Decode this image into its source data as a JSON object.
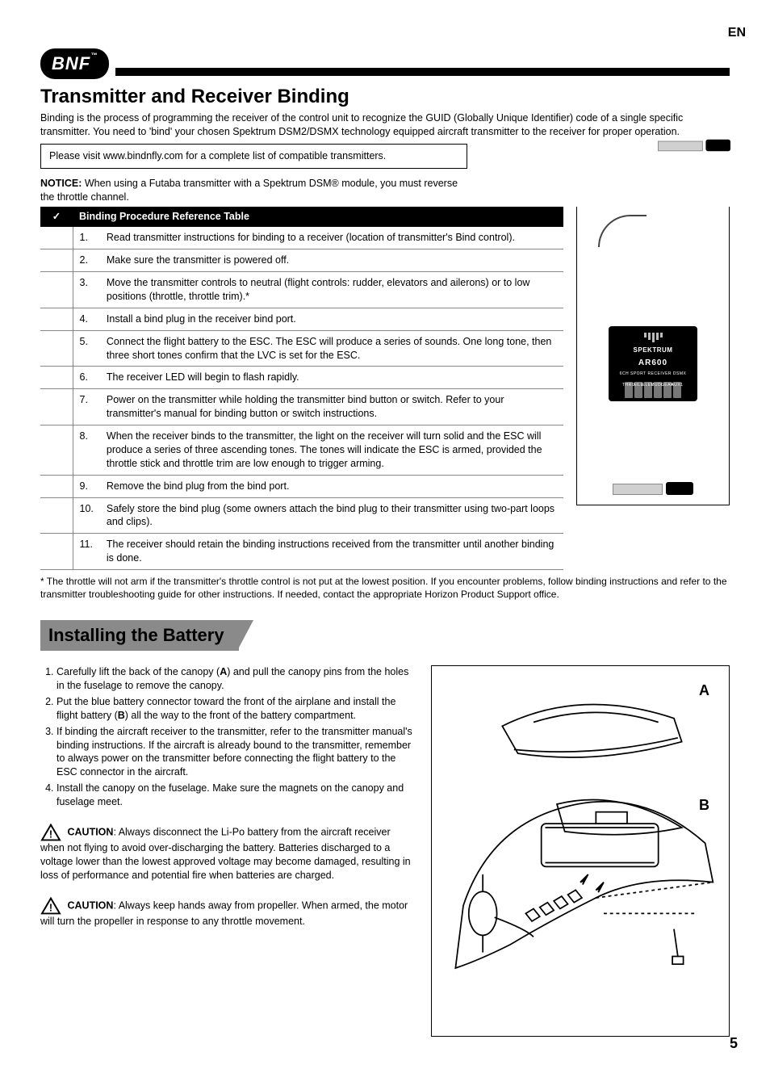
{
  "lang_tag": "EN",
  "logo_text": "BNF",
  "logo_tm": "™",
  "section1": {
    "title": "Transmitter and Receiver Binding",
    "intro": "Binding is the process of programming the receiver of the control unit to recognize the GUID (Globally Unique Identifier) code of a single specific transmitter. You need to 'bind' your chosen Spektrum DSM2/DSMX technology equipped aircraft transmitter to the receiver for proper operation.",
    "visit_box": "Please visit www.bindnfly.com for a complete list of compatible transmitters.",
    "notice_label": "NOTICE:",
    "notice_text": " When using a Futaba transmitter with a Spektrum DSM® module, you must reverse the throttle channel.",
    "table_header_check": "✓",
    "table_header_title": "Binding Procedure Reference Table",
    "rows": [
      {
        "n": "1.",
        "t": "Read transmitter instructions for binding to a receiver (location of transmitter's Bind control)."
      },
      {
        "n": "2.",
        "t": "Make sure the transmitter is powered off."
      },
      {
        "n": "3.",
        "t": "Move the transmitter controls to neutral (flight controls: rudder, elevators and ailerons) or to low positions (throttle, throttle trim).*"
      },
      {
        "n": "4.",
        "t": "Install a bind plug in the receiver bind port."
      },
      {
        "n": "5.",
        "t": "Connect the flight battery to the ESC. The ESC will produce a series of sounds. One long tone, then three short tones confirm that the LVC is set for the ESC."
      },
      {
        "n": "6.",
        "t": "The receiver LED will begin to flash rapidly."
      },
      {
        "n": "7.",
        "t": "Power on the transmitter while holding the transmitter bind button or switch. Refer to your transmitter's manual for binding button or switch instructions."
      },
      {
        "n": "8.",
        "t": "When the receiver binds to the transmitter, the light on the receiver will turn solid and the ESC will produce a series of three ascending tones. The tones will indicate the ESC is armed, provided the throttle stick and throttle trim are low enough to trigger arming."
      },
      {
        "n": "9.",
        "t": "Remove the bind plug from the bind port."
      },
      {
        "n": "10.",
        "t": "Safely store the bind plug (some owners attach the bind plug to their transmitter using two-part loops and clips)."
      },
      {
        "n": "11.",
        "t": "The receiver should retain the binding instructions received from the transmitter until another binding is done."
      }
    ],
    "footnote": "* The throttle will not arm if the transmitter's throttle control is not put at the lowest position. If you encounter problems, follow binding instructions and refer to the transmitter troubleshooting guide for other instructions.  If needed, contact the appropriate Horizon Product Support office.",
    "receiver": {
      "brand": "SPEKTRUM",
      "model": "AR600",
      "subtitle": "6CH SPORT RECEIVER   DSMX",
      "pins": [
        "THRO",
        "AILE",
        "ELEV",
        "RUDD",
        "GEAR",
        "AUX1"
      ]
    }
  },
  "section2": {
    "title": "Installing the Battery",
    "steps": [
      {
        "pre": "Carefully lift the back of the canopy (",
        "b": "A",
        "post": ") and pull the canopy pins from the holes in the fuselage to remove the canopy."
      },
      {
        "pre": "Put the blue battery connector toward the front of the airplane and install the flight battery (",
        "b": "B",
        "post": ") all the way to the front of the battery compartment."
      },
      {
        "pre": "If binding the aircraft receiver to the transmitter, refer to the transmitter manual's binding instructions. If the aircraft is already bound to the transmitter, remember to always power on the transmitter before connecting the flight battery to the ESC connector in the aircraft.",
        "b": "",
        "post": ""
      },
      {
        "pre": "Install the canopy on the fuselage. Make sure the magnets on the canopy and fuselage meet.",
        "b": "",
        "post": ""
      }
    ],
    "caution_label": "CAUTION",
    "caution1": ": Always disconnect the Li-Po battery from the aircraft receiver when not flying to avoid over-discharging the battery. Batteries discharged to a voltage lower than the lowest approved voltage may become damaged, resulting in loss of performance and potential fire when batteries are charged.",
    "caution2": ": Always keep hands away from propeller. When armed, the motor will turn the propeller in response to any throttle movement.",
    "label_a": "A",
    "label_b": "B"
  },
  "page_number": "5"
}
